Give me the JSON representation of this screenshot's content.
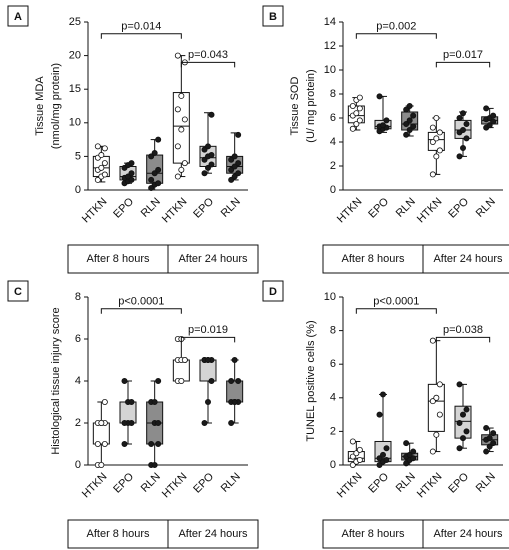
{
  "chart_data": [
    {
      "type": "box",
      "label": "A",
      "ylabel": [
        "Tissue MDA",
        "(nmol/mg protein)"
      ],
      "ylim": [
        0,
        25
      ],
      "yticks": [
        0,
        5,
        10,
        15,
        20,
        25
      ],
      "groups": [
        "After 8 hours",
        "After 24 hours"
      ],
      "annotations": [
        "p=0.014",
        "p=0.043"
      ],
      "boxes": [
        {
          "name": "HTKN",
          "color": "#ffffff",
          "min": 1.2,
          "q1": 2,
          "median": 3.3,
          "q3": 5,
          "max": 6.5,
          "points": [
            1.5,
            2,
            2.3,
            3,
            3.3,
            4,
            4.8,
            5.2,
            6.2,
            6.5
          ]
        },
        {
          "name": "EPO",
          "color": "#d4d4d4",
          "min": 1,
          "q1": 1.5,
          "median": 2,
          "q3": 3.5,
          "max": 4,
          "points": [
            1,
            1.3,
            1.5,
            1.8,
            2,
            2.5,
            3.3,
            3.7,
            4
          ]
        },
        {
          "name": "RLN",
          "color": "#8c8c8c",
          "min": 0,
          "q1": 1,
          "median": 2.5,
          "q3": 5.2,
          "max": 7.5,
          "points": [
            0.3,
            0.8,
            1,
            1.5,
            2.5,
            3,
            5,
            5.5,
            7.5
          ]
        },
        {
          "name": "HTKN",
          "color": "#ffffff",
          "min": 2,
          "q1": 4,
          "median": 9.5,
          "q3": 14.5,
          "max": 20,
          "points": [
            2,
            3,
            4,
            6.5,
            9,
            10.5,
            12,
            14,
            19,
            20
          ]
        },
        {
          "name": "EPO",
          "color": "#d4d4d4",
          "min": 2.5,
          "q1": 3.5,
          "median": 4.8,
          "q3": 6.5,
          "max": 11.5,
          "points": [
            2.5,
            3.3,
            3.8,
            4.5,
            5,
            5.2,
            6,
            6.5,
            11.2
          ]
        },
        {
          "name": "RLN",
          "color": "#8c8c8c",
          "min": 1.5,
          "q1": 2.5,
          "median": 3.5,
          "q3": 5,
          "max": 8.5,
          "points": [
            1.5,
            2,
            2.5,
            3,
            3.5,
            4,
            4.5,
            5,
            8.2
          ]
        }
      ]
    },
    {
      "type": "box",
      "label": "B",
      "ylabel": [
        "Tissue SOD",
        "(U/ mg protein)"
      ],
      "ylim": [
        0,
        14
      ],
      "yticks": [
        0,
        2,
        4,
        6,
        8,
        10,
        12,
        14
      ],
      "groups": [
        "After 8 hours",
        "After 24 hours"
      ],
      "annotations": [
        "p=0.002",
        "p=0.017"
      ],
      "boxes": [
        {
          "name": "HTKN",
          "color": "#ffffff",
          "min": 5,
          "q1": 5.6,
          "median": 6.2,
          "q3": 7,
          "max": 7.7,
          "points": [
            5.1,
            5.5,
            5.8,
            6.2,
            6.4,
            6.8,
            7,
            7.5,
            7.7
          ]
        },
        {
          "name": "EPO",
          "color": "#d4d4d4",
          "min": 4.8,
          "q1": 5.1,
          "median": 5.3,
          "q3": 5.8,
          "max": 7.8,
          "points": [
            4.9,
            5.1,
            5.2,
            5.3,
            5.4,
            5.8,
            7.8
          ]
        },
        {
          "name": "RLN",
          "color": "#8c8c8c",
          "min": 4.5,
          "q1": 5,
          "median": 5.5,
          "q3": 6.5,
          "max": 7,
          "points": [
            4.6,
            5,
            5.3,
            5.5,
            5.8,
            6.2,
            6.7,
            7
          ]
        },
        {
          "name": "HTKN",
          "color": "#ffffff",
          "min": 1.3,
          "q1": 3.3,
          "median": 4.2,
          "q3": 4.8,
          "max": 6,
          "points": [
            1.3,
            2.8,
            3.3,
            4,
            4.3,
            4.8,
            5.2,
            6
          ]
        },
        {
          "name": "EPO",
          "color": "#d4d4d4",
          "min": 2.8,
          "q1": 4.3,
          "median": 5,
          "q3": 5.8,
          "max": 6.5,
          "points": [
            2.8,
            3.5,
            4.3,
            4.8,
            5,
            5.5,
            6,
            6.4
          ]
        },
        {
          "name": "RLN",
          "color": "#8c8c8c",
          "min": 5.2,
          "q1": 5.5,
          "median": 5.8,
          "q3": 6.1,
          "max": 6.8,
          "points": [
            5.2,
            5.4,
            5.7,
            5.9,
            6,
            6.2,
            6.8
          ]
        }
      ]
    },
    {
      "type": "box",
      "label": "C",
      "ylabel": [
        "Histological tissue injury score"
      ],
      "ylim": [
        0,
        8
      ],
      "yticks": [
        0,
        2,
        4,
        6,
        8
      ],
      "groups": [
        "After 8 hours",
        "After 24 hours"
      ],
      "annotations": [
        "p<0.0001",
        "p=0.019"
      ],
      "boxes": [
        {
          "name": "HTKN",
          "color": "#ffffff",
          "min": 0,
          "q1": 1,
          "median": 2,
          "q3": 2,
          "max": 3,
          "points": [
            0,
            0,
            1,
            1,
            2,
            2,
            2,
            2,
            3
          ]
        },
        {
          "name": "EPO",
          "color": "#d4d4d4",
          "min": 1,
          "q1": 2,
          "median": 2,
          "q3": 3,
          "max": 4,
          "points": [
            1,
            2,
            2,
            2,
            3,
            3,
            4
          ]
        },
        {
          "name": "RLN",
          "color": "#8c8c8c",
          "min": 0,
          "q1": 1,
          "median": 2,
          "q3": 3,
          "max": 4,
          "points": [
            0,
            0,
            1,
            1,
            2,
            2,
            3,
            3,
            4
          ]
        },
        {
          "name": "HTKN",
          "color": "#ffffff",
          "min": 4,
          "q1": 4,
          "median": 5,
          "q3": 5,
          "max": 6,
          "points": [
            4,
            4,
            5,
            5,
            5,
            5,
            6,
            6
          ]
        },
        {
          "name": "EPO",
          "color": "#d4d4d4",
          "min": 2,
          "q1": 4,
          "median": 5,
          "q3": 5,
          "max": 5,
          "points": [
            2,
            3,
            4,
            5,
            5,
            5,
            5,
            5
          ]
        },
        {
          "name": "RLN",
          "color": "#8c8c8c",
          "min": 2,
          "q1": 3,
          "median": 3,
          "q3": 4,
          "max": 5,
          "points": [
            2,
            3,
            3,
            3,
            3,
            4,
            4,
            5
          ]
        }
      ]
    },
    {
      "type": "box",
      "label": "D",
      "ylabel": [
        "TUNEL positive cells (%)"
      ],
      "ylim": [
        0,
        10
      ],
      "yticks": [
        0,
        2,
        4,
        6,
        8,
        10
      ],
      "groups": [
        "After 8 hours",
        "After 24 hours"
      ],
      "annotations": [
        "p<0.0001",
        "p=0.038"
      ],
      "boxes": [
        {
          "name": "HTKN",
          "color": "#ffffff",
          "min": 0,
          "q1": 0.2,
          "median": 0.4,
          "q3": 0.8,
          "max": 1.4,
          "points": [
            0,
            0.2,
            0.3,
            0.5,
            0.7,
            0.9,
            1.4
          ]
        },
        {
          "name": "EPO",
          "color": "#d4d4d4",
          "min": 0,
          "q1": 0.2,
          "median": 0.4,
          "q3": 1.4,
          "max": 4.2,
          "points": [
            0,
            0.2,
            0.3,
            0.4,
            0.6,
            1,
            3,
            4.2
          ]
        },
        {
          "name": "RLN",
          "color": "#8c8c8c",
          "min": 0,
          "q1": 0.3,
          "median": 0.5,
          "q3": 0.7,
          "max": 1.3,
          "points": [
            0.1,
            0.3,
            0.4,
            0.5,
            0.6,
            0.8,
            1.3
          ]
        },
        {
          "name": "HTKN",
          "color": "#ffffff",
          "min": 0.8,
          "q1": 2,
          "median": 3.8,
          "q3": 4.8,
          "max": 7.4,
          "points": [
            0.8,
            1.8,
            3,
            3.8,
            4,
            4.8,
            7.4
          ]
        },
        {
          "name": "EPO",
          "color": "#d4d4d4",
          "min": 1,
          "q1": 1.6,
          "median": 2.6,
          "q3": 3.5,
          "max": 4.8,
          "points": [
            1,
            1.6,
            2,
            2.5,
            3,
            3.3,
            4.8
          ]
        },
        {
          "name": "RLN",
          "color": "#8c8c8c",
          "min": 0.8,
          "q1": 1.2,
          "median": 1.5,
          "q3": 1.8,
          "max": 2.2,
          "points": [
            0.8,
            1.1,
            1.3,
            1.5,
            1.6,
            1.9,
            2.2
          ]
        }
      ]
    }
  ]
}
